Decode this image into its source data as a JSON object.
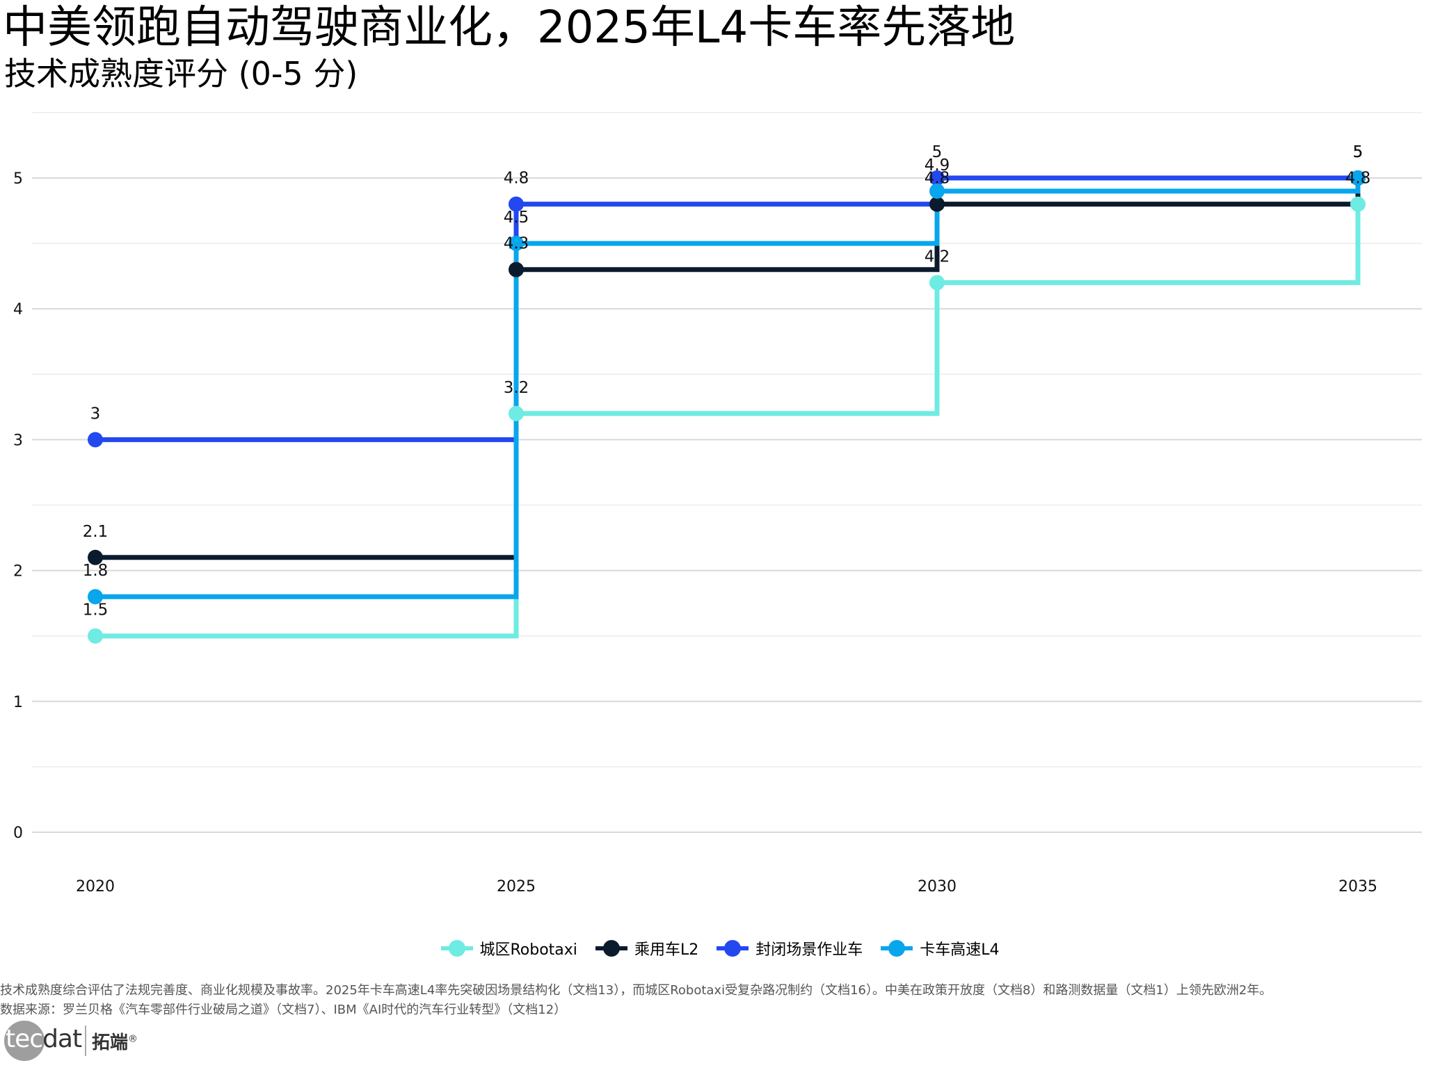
{
  "chart_data": {
    "type": "line",
    "step": "hv",
    "title": "中美领跑自动驾驶商业化，2025年L4卡车率先落地",
    "subtitle": "技术成熟度评分 (0-5 分)",
    "xlabel": "",
    "ylabel": "",
    "x": [
      2020,
      2025,
      2030,
      2035
    ],
    "x_tick_labels": [
      "2020",
      "2025",
      "2030",
      "2035"
    ],
    "y_tick_labels": [
      "0",
      "1",
      "2",
      "3",
      "4",
      "5"
    ],
    "xlim": [
      2019.25,
      2035.75
    ],
    "ylim": [
      -0.2,
      5.5
    ],
    "grid": true,
    "legend_position": "bottom",
    "series": [
      {
        "name": "城区Robotaxi",
        "color": "#6EEBE3",
        "values": [
          1.5,
          3.2,
          4.2,
          4.8
        ],
        "labels": [
          "1.5",
          "3.2",
          "4.2",
          "4.8"
        ]
      },
      {
        "name": "乘用车L2",
        "color": "#0B1B2E",
        "values": [
          2.1,
          4.3,
          4.8,
          5
        ],
        "labels": [
          "2.1",
          "4.3",
          "4.8",
          "5"
        ]
      },
      {
        "name": "封闭场景作业车",
        "color": "#2348F0",
        "values": [
          3,
          4.8,
          5,
          5
        ],
        "labels": [
          "3",
          "4.8",
          "5",
          "5"
        ]
      },
      {
        "name": "卡车高速L4",
        "color": "#08A6EC",
        "values": [
          1.8,
          4.5,
          4.9,
          5
        ],
        "labels": [
          "1.8",
          "4.5",
          "4.9",
          "5"
        ]
      }
    ]
  },
  "footer": {
    "note": "技术成熟度综合评估了法规完善度、商业化规模及事故率。2025年卡车高速L4率先突破因场景结构化（文档13），而城区Robotaxi受复杂路况制约（文档16）。中美在政策开放度（文档8）和路测数据量（文档1）上领先欧洲2年。",
    "source": "数据来源：罗兰贝格《汽车零部件行业破局之道》（文档7）、IBM《AI时代的汽车行业转型》（文档12）"
  },
  "logo": {
    "word_a": "tec",
    "word_b": "dat",
    "cn": "拓端",
    "reg": "®"
  }
}
